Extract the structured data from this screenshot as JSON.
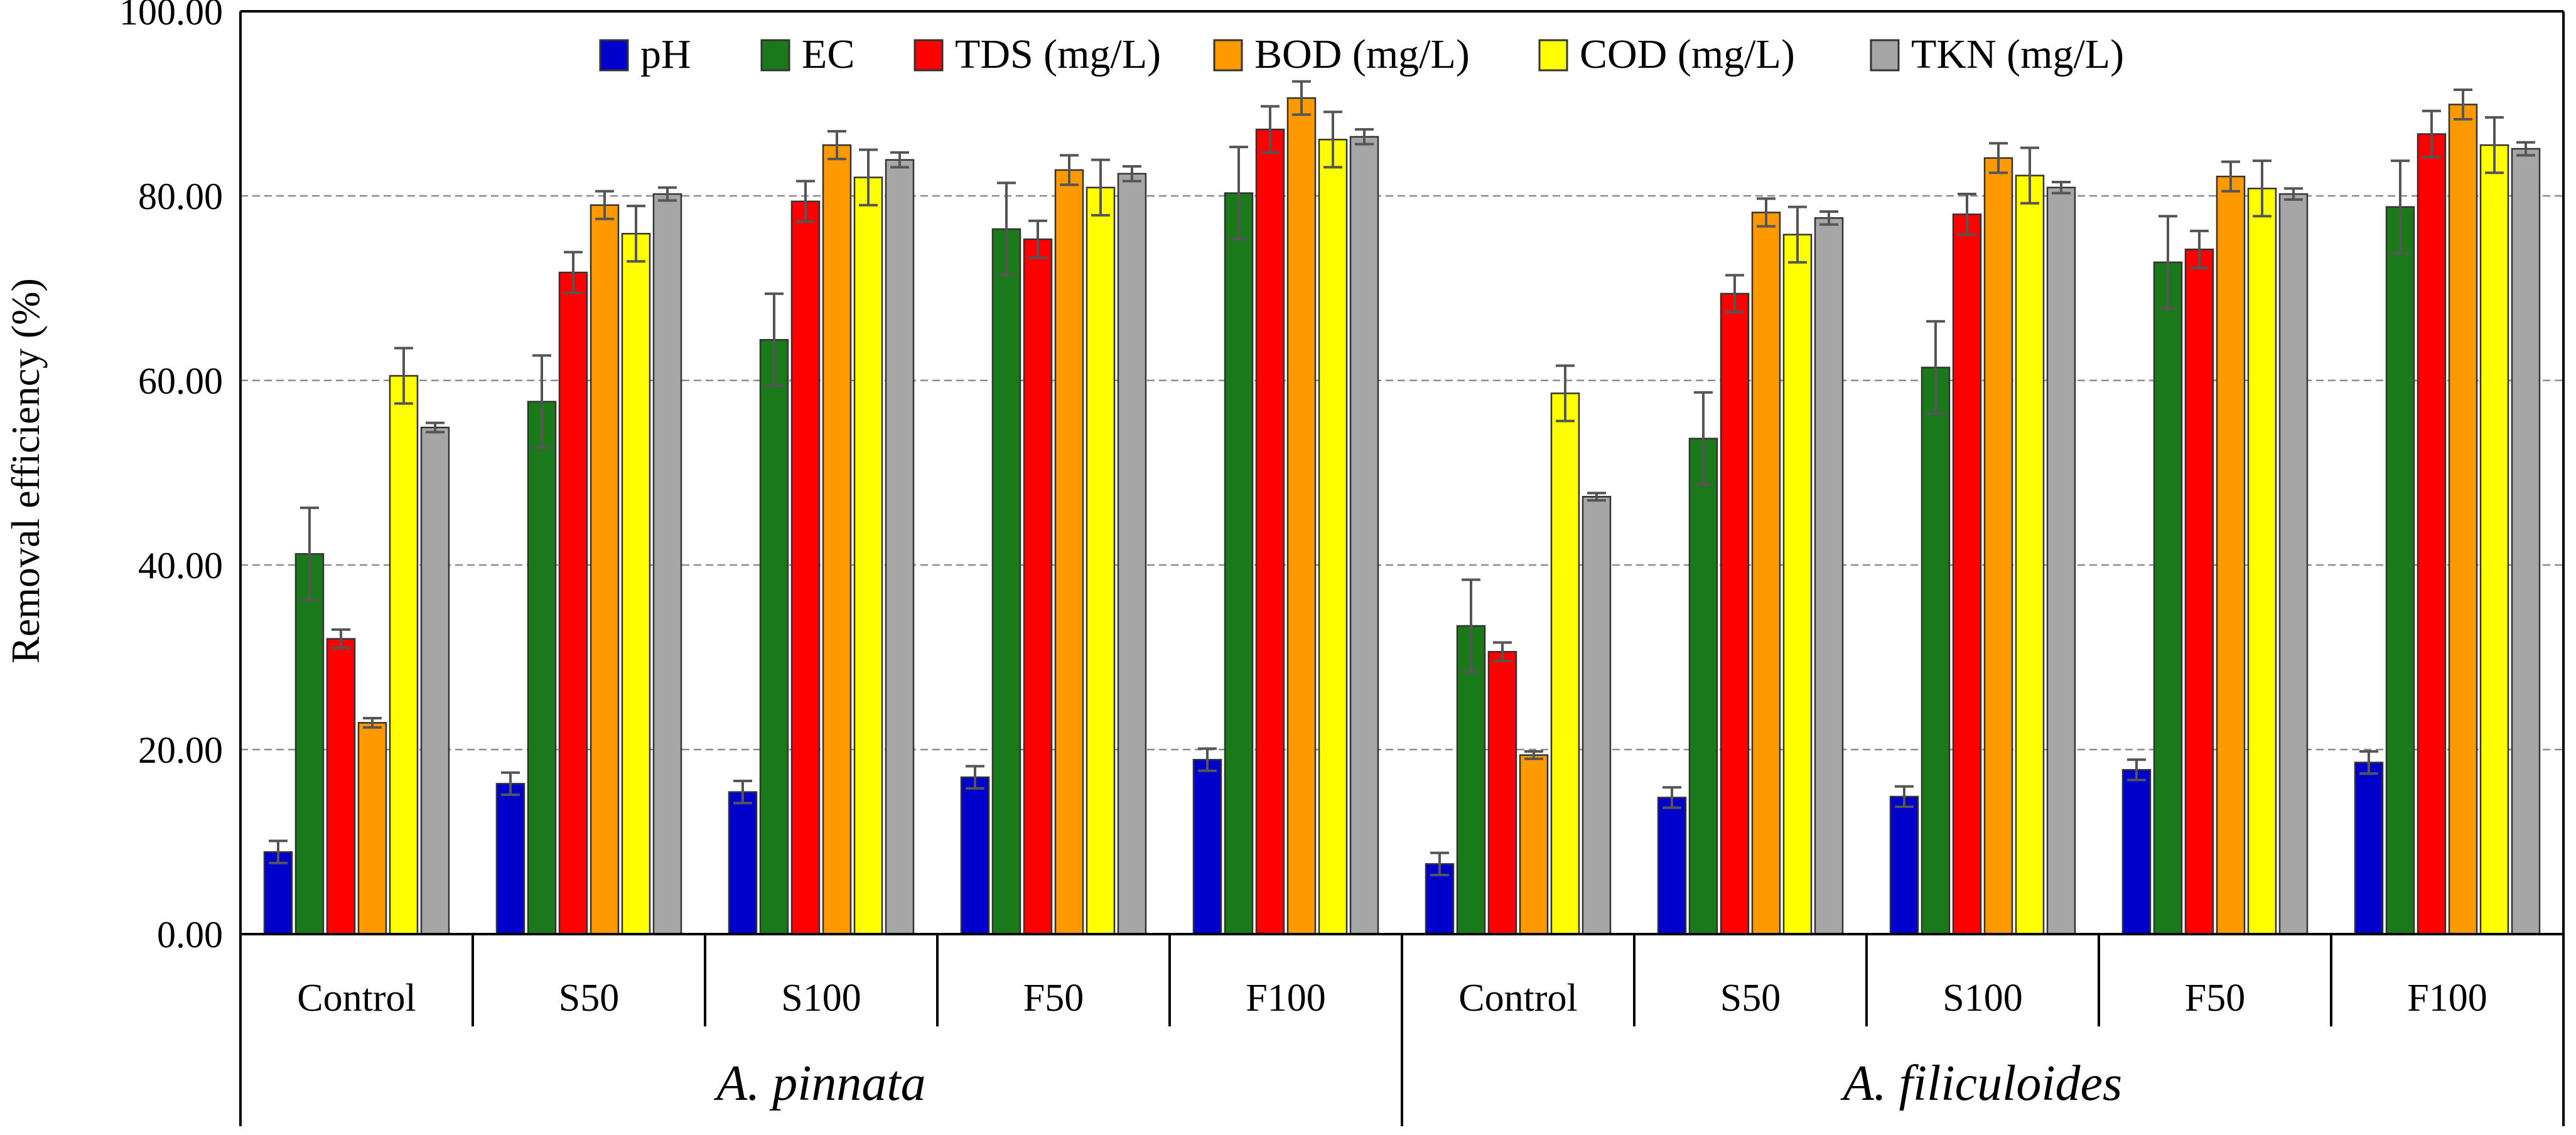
{
  "chart_data": {
    "type": "bar",
    "title": "",
    "xlabel": "",
    "ylabel": "Removal efficiency (%)",
    "ylim": [
      0,
      100
    ],
    "yticks": [
      "0.00",
      "20.00",
      "40.00",
      "60.00",
      "80.00",
      "100.00"
    ],
    "ytick_values": [
      0,
      20,
      40,
      60,
      80,
      100
    ],
    "grid": true,
    "legend_position": "top",
    "categories": [
      "Control",
      "S50",
      "S100",
      "F50",
      "F100",
      "Control",
      "S50",
      "S100",
      "F50",
      "F100"
    ],
    "groups": [
      {
        "label": "A. pinnata",
        "span": [
          0,
          4
        ]
      },
      {
        "label": "A. filiculoides",
        "span": [
          5,
          9
        ]
      }
    ],
    "series": [
      {
        "name": "pH",
        "color": "#0000cc",
        "values": [
          8.9,
          16.3,
          15.4,
          17.0,
          18.9,
          7.6,
          14.8,
          14.9,
          17.8,
          18.6
        ],
        "errors": [
          1.2,
          1.2,
          1.2,
          1.2,
          1.2,
          1.2,
          1.1,
          1.1,
          1.1,
          1.2
        ]
      },
      {
        "name": "EC",
        "color": "#1a7a1a",
        "values": [
          41.2,
          57.7,
          64.4,
          76.4,
          80.3,
          33.4,
          53.7,
          61.4,
          72.8,
          78.8
        ],
        "errors": [
          5.0,
          5.0,
          5.0,
          5.0,
          5.0,
          5.0,
          5.0,
          5.0,
          5.0,
          5.0
        ]
      },
      {
        "name": "TDS (mg/L)",
        "color": "#ff0000",
        "values": [
          32.0,
          71.7,
          79.4,
          75.3,
          87.2,
          30.6,
          69.4,
          78.0,
          74.2,
          86.7
        ],
        "errors": [
          1.0,
          2.2,
          2.2,
          2.0,
          2.5,
          1.0,
          2.0,
          2.2,
          2.0,
          2.5
        ]
      },
      {
        "name": "BOD (mg/L)",
        "color": "#ff9900",
        "values": [
          22.9,
          79.0,
          85.5,
          82.8,
          90.6,
          19.4,
          78.2,
          84.1,
          82.1,
          89.9
        ],
        "errors": [
          0.5,
          1.5,
          1.5,
          1.6,
          1.8,
          0.4,
          1.5,
          1.6,
          1.6,
          1.6
        ]
      },
      {
        "name": "COD (mg/L)",
        "color": "#ffff00",
        "values": [
          60.5,
          75.9,
          82.0,
          80.9,
          86.1,
          58.6,
          75.8,
          82.2,
          80.8,
          85.5
        ],
        "errors": [
          3.0,
          3.0,
          3.0,
          3.0,
          3.0,
          3.0,
          3.0,
          3.0,
          3.0,
          3.0
        ]
      },
      {
        "name": "TKN (mg/L)",
        "color": "#a6a6a6",
        "values": [
          54.9,
          80.2,
          83.9,
          82.4,
          86.4,
          47.4,
          77.6,
          80.9,
          80.2,
          85.1
        ],
        "errors": [
          0.5,
          0.7,
          0.8,
          0.8,
          0.8,
          0.4,
          0.7,
          0.6,
          0.6,
          0.7
        ]
      }
    ]
  }
}
